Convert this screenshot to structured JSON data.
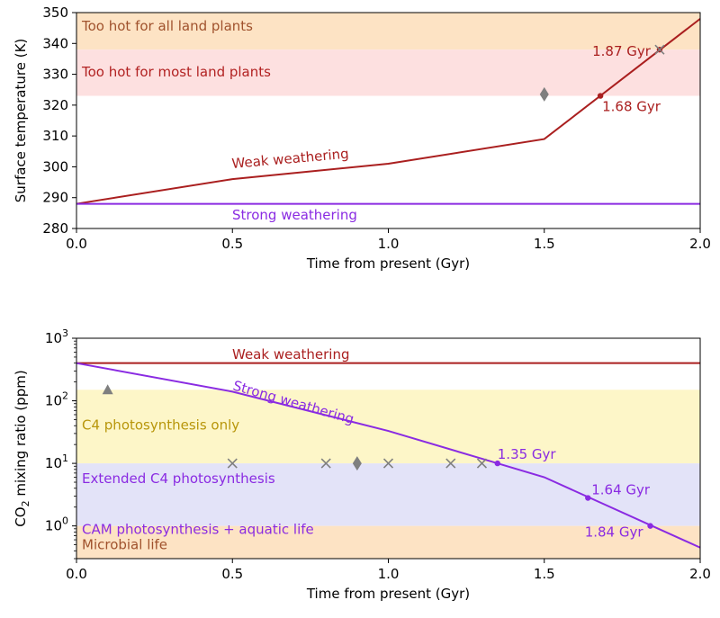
{
  "chart_data": [
    {
      "type": "line",
      "xlabel": "Time from present (Gyr)",
      "ylabel": "Surface temperature (K)",
      "xlim": [
        0,
        2.0
      ],
      "ylim": [
        280,
        350
      ],
      "yscale": "linear",
      "xticks": [
        0.0,
        0.5,
        1.0,
        1.5,
        2.0
      ],
      "xtick_labels": [
        "0.0",
        "0.5",
        "1.0",
        "1.5",
        "2.0"
      ],
      "yticks": [
        280,
        290,
        300,
        310,
        320,
        330,
        340,
        350
      ],
      "ytick_labels": [
        "280",
        "290",
        "300",
        "310",
        "320",
        "330",
        "340",
        "350"
      ],
      "grid": false,
      "bands": [
        {
          "label": "Too hot for all land plants",
          "y": [
            338,
            350
          ],
          "color": "#fde3c4",
          "text_color": "#a0522d"
        },
        {
          "label": "Too hot for most land plants",
          "y": [
            323,
            338
          ],
          "color": "#fde0e0",
          "text_color": "#b22222"
        }
      ],
      "series": [
        {
          "name": "Weak weathering",
          "color": "#aa1f1f",
          "x": [
            0.0,
            0.5,
            1.0,
            1.5,
            2.0
          ],
          "y": [
            288,
            296,
            301,
            309,
            348
          ]
        },
        {
          "name": "Strong weathering",
          "color": "#8a2be2",
          "x": [
            0.0,
            2.0
          ],
          "y": [
            288,
            288
          ]
        }
      ],
      "markers": [
        {
          "x": 1.68,
          "y": 323,
          "shape": "dot",
          "color": "#aa1f1f",
          "label": "1.68 Gyr"
        },
        {
          "x": 1.87,
          "y": 338,
          "shape": "dot",
          "color": "#aa1f1f",
          "label": "1.87 Gyr"
        },
        {
          "x": 1.87,
          "y": 338,
          "shape": "x",
          "color": "#7f7f7f"
        },
        {
          "x": 1.5,
          "y": 323.5,
          "shape": "diamond",
          "color": "#7f7f7f"
        }
      ]
    },
    {
      "type": "line",
      "xlabel": "Time from present (Gyr)",
      "ylabel": "CO",
      "ylabel_sub": "2",
      "ylabel_rest": " mixing ratio (ppm)",
      "xlim": [
        0,
        2.0
      ],
      "ylim": [
        0.3,
        1000
      ],
      "yscale": "log",
      "xticks": [
        0.0,
        0.5,
        1.0,
        1.5,
        2.0
      ],
      "xtick_labels": [
        "0.0",
        "0.5",
        "1.0",
        "1.5",
        "2.0"
      ],
      "yticks": [
        1,
        10,
        100,
        1000
      ],
      "ytick_exponents": [
        "0",
        "1",
        "2",
        "3"
      ],
      "grid": false,
      "bands": [
        {
          "label": "C4 photosynthesis only",
          "y": [
            10,
            150
          ],
          "color": "#fdf6c8",
          "text_color": "#b8960b"
        },
        {
          "label": "Extended C4 photosynthesis",
          "y": [
            3.2,
            10
          ],
          "color": "#e3e3f8",
          "text_color": "#8a2be2"
        },
        {
          "label": "CAM photosynthesis + aquatic life",
          "y": [
            1,
            3.2
          ],
          "color": "#e3e3f8",
          "text_color": "#8a2be2"
        },
        {
          "label": "Microbial life",
          "y": [
            0.3,
            1
          ],
          "color": "#fde3c4",
          "text_color": "#a0522d"
        }
      ],
      "series": [
        {
          "name": "Weak weathering",
          "color": "#aa1f1f",
          "x": [
            0.0,
            2.0
          ],
          "y": [
            400,
            400
          ]
        },
        {
          "name": "Strong weathering",
          "color": "#8a2be2",
          "x": [
            0.0,
            0.5,
            1.0,
            1.35,
            1.5,
            2.0
          ],
          "y": [
            400,
            140,
            33,
            10,
            6,
            0.45
          ]
        }
      ],
      "markers": [
        {
          "x": 1.35,
          "y": 10,
          "shape": "dot",
          "color": "#8a2be2",
          "label": "1.35 Gyr"
        },
        {
          "x": 1.64,
          "y": 2.8,
          "shape": "dot",
          "color": "#8a2be2",
          "label": "1.64 Gyr"
        },
        {
          "x": 1.84,
          "y": 1.0,
          "shape": "dot",
          "color": "#8a2be2",
          "label": "1.84 Gyr"
        },
        {
          "x": 0.1,
          "y": 150,
          "shape": "triangle",
          "color": "#7f7f7f"
        },
        {
          "x": 0.9,
          "y": 10,
          "shape": "diamond",
          "color": "#7f7f7f"
        },
        {
          "x": 0.5,
          "y": 10,
          "shape": "x",
          "color": "#7f7f7f"
        },
        {
          "x": 0.8,
          "y": 10,
          "shape": "x",
          "color": "#7f7f7f"
        },
        {
          "x": 1.0,
          "y": 10,
          "shape": "x",
          "color": "#7f7f7f"
        },
        {
          "x": 1.2,
          "y": 10,
          "shape": "x",
          "color": "#7f7f7f"
        },
        {
          "x": 1.3,
          "y": 10,
          "shape": "x",
          "color": "#7f7f7f"
        }
      ]
    }
  ]
}
